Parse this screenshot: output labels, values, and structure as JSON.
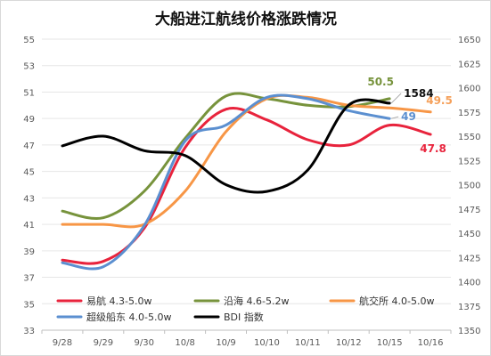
{
  "chart_data": {
    "type": "line",
    "title": "大船进江航线价格涨跌情况",
    "categories": [
      "9/28",
      "9/29",
      "9/30",
      "10/8",
      "10/9",
      "10/10",
      "10/11",
      "10/12",
      "10/15",
      "10/16"
    ],
    "y_left": {
      "min": 33,
      "max": 55,
      "ticks": [
        33,
        35,
        37,
        39,
        41,
        43,
        45,
        47,
        49,
        51,
        53,
        55
      ]
    },
    "y_right": {
      "min": 1350,
      "max": 1650,
      "ticks": [
        1350,
        1375,
        1400,
        1425,
        1450,
        1475,
        1500,
        1525,
        1550,
        1575,
        1600,
        1625,
        1650
      ]
    },
    "grid": true,
    "legend_position": "bottom",
    "series": [
      {
        "name": "易航 4.3-5.0w",
        "color": "#e8233c",
        "axis": "left",
        "values": [
          38.3,
          38.2,
          40.7,
          46.8,
          49.7,
          48.9,
          47.4,
          47.0,
          48.5,
          47.8
        ],
        "end_label": "47.8"
      },
      {
        "name": "沿海 4.6-5.2w",
        "color": "#77933c",
        "axis": "left",
        "values": [
          42.0,
          41.5,
          43.5,
          47.5,
          50.7,
          50.5,
          50.0,
          49.9,
          50.5,
          null
        ],
        "end_label": "50.5"
      },
      {
        "name": "航交所 4.0-5.0w",
        "color": "#f79646",
        "axis": "left",
        "values": [
          41.0,
          41.0,
          41.0,
          43.5,
          48.0,
          50.5,
          50.6,
          50.0,
          49.8,
          49.5
        ],
        "end_label": "49.5"
      },
      {
        "name": "超级船东 4.0-5.0w",
        "color": "#5b8fd0",
        "axis": "left",
        "values": [
          38.1,
          37.8,
          40.9,
          47.3,
          48.5,
          50.6,
          50.5,
          49.6,
          49.0,
          null
        ],
        "end_label": "49"
      },
      {
        "name": "BDI 指数",
        "color": "#000000",
        "axis": "right",
        "values": [
          1540,
          1550,
          1535,
          1530,
          1500,
          1493,
          1515,
          1582,
          1584,
          null
        ],
        "end_label": "1584"
      }
    ]
  }
}
